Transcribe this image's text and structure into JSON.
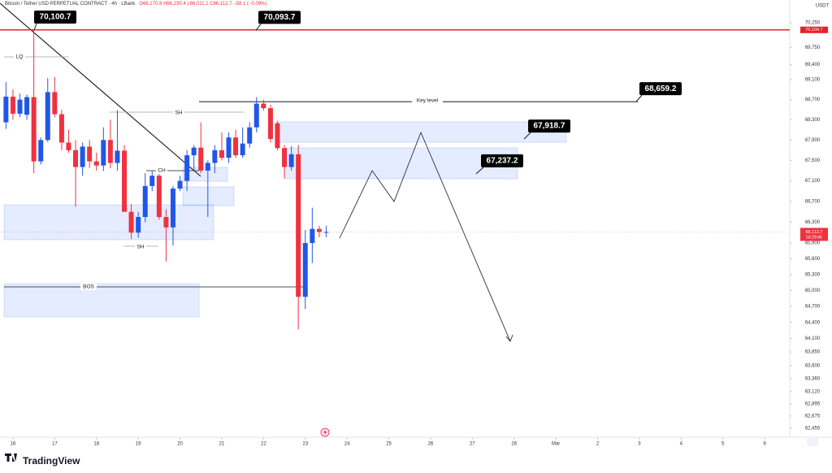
{
  "header": {
    "symbol": "Bitcoin / Tether USD PERPETUAL CONTRACT · 4h · LBank",
    "ohlc": "O66,170.8 H66,230.4 L66,011.1 C66,112.7 −58.1 (−0.09%)"
  },
  "chart_data": {
    "type": "candlestick",
    "log_scale": true,
    "grid": false,
    "up_color": "#2157e8",
    "down_color": "#ef3140",
    "x": [
      15.833,
      16,
      16.167,
      16.333,
      16.5,
      16.667,
      16.833,
      17,
      17.167,
      17.333,
      17.5,
      17.667,
      17.833,
      18,
      18.167,
      18.333,
      18.5,
      18.667,
      18.833,
      19,
      19.167,
      19.333,
      19.5,
      19.667,
      19.833,
      20,
      20.167,
      20.333,
      20.5,
      20.667,
      20.833,
      21,
      21.167,
      21.333,
      21.5,
      21.667,
      21.833,
      22,
      22.167,
      22.333,
      22.5,
      22.667,
      22.833,
      23,
      23.167,
      23.333,
      23.5
    ],
    "open": [
      68250,
      68760,
      68420,
      68400,
      68750,
      67480,
      67900,
      68850,
      68410,
      67850,
      67700,
      67370,
      67770,
      67480,
      67400,
      67900,
      67450,
      67690,
      66500,
      66100,
      66400,
      67000,
      67200,
      66400,
      66200,
      66950,
      67100,
      67600,
      67750,
      67300,
      67450,
      67700,
      67550,
      67950,
      67600,
      67830,
      68150,
      68620,
      68530,
      68230,
      67740,
      67370,
      67620,
      64880,
      65900,
      66170.8,
      66112.7
    ],
    "high": [
      69050,
      68900,
      68820,
      68800,
      70100,
      67950,
      69130,
      69150,
      68500,
      68100,
      67900,
      67850,
      67900,
      67650,
      68150,
      68300,
      68490,
      67800,
      66650,
      66500,
      67250,
      67300,
      67300,
      66550,
      67000,
      67200,
      67700,
      67800,
      68250,
      67500,
      67800,
      68050,
      68050,
      68100,
      68150,
      68250,
      68750,
      68700,
      68600,
      68280,
      67800,
      67780,
      67800,
      66150,
      66580,
      66230.4,
      66230.4
    ],
    "low": [
      68120,
      68300,
      68350,
      68300,
      67250,
      67420,
      67860,
      68350,
      67700,
      67650,
      66600,
      67200,
      67350,
      67300,
      67290,
      67350,
      67300,
      66500,
      65980,
      66000,
      66300,
      66900,
      66350,
      65550,
      65850,
      66900,
      66900,
      67300,
      67250,
      66400,
      67250,
      67500,
      67450,
      67550,
      67550,
      67750,
      68050,
      68480,
      67850,
      67700,
      67150,
      67300,
      64270,
      64650,
      65520,
      66011.1,
      66011.1
    ],
    "close": [
      68760,
      68420,
      68700,
      68750,
      67480,
      67900,
      68850,
      68410,
      67850,
      67700,
      67370,
      67770,
      67480,
      67400,
      67900,
      67450,
      67690,
      66500,
      66100,
      66400,
      67000,
      67200,
      66400,
      66200,
      66950,
      67100,
      67600,
      67750,
      67300,
      67450,
      67700,
      67550,
      67950,
      67600,
      67830,
      68150,
      68620,
      68530,
      67920,
      67740,
      67370,
      67620,
      64880,
      65900,
      66170.8,
      66112.7,
      66112.7
    ],
    "xlim": [
      15.69,
      34.6
    ],
    "xticks": [
      16,
      17,
      18,
      19,
      20,
      21,
      22,
      23,
      24,
      25,
      26,
      27,
      28,
      {
        "value": 29,
        "label": "Mar"
      },
      {
        "value": 30,
        "label": "2"
      },
      {
        "value": 31,
        "label": "3"
      },
      {
        "value": 32,
        "label": "4"
      },
      {
        "value": 33,
        "label": "5"
      },
      {
        "value": 34,
        "label": "6"
      }
    ],
    "ylim": [
      62290,
      70715
    ],
    "yticks": [
      {
        "value": 70250,
        "label": "70,250"
      },
      {
        "value": 69750,
        "label": "69,750"
      },
      {
        "value": 69400,
        "label": "69,400"
      },
      {
        "value": 69100,
        "label": "69,100"
      },
      {
        "value": 68700,
        "label": "68,700"
      },
      {
        "value": 68300,
        "label": "68,300"
      },
      {
        "value": 67900,
        "label": "67,900"
      },
      {
        "value": 67500,
        "label": "67,500"
      },
      {
        "value": 67100,
        "label": "67,100"
      },
      {
        "value": 66700,
        "label": "66,700"
      },
      {
        "value": 66300,
        "label": "66,300"
      },
      {
        "value": 65900,
        "label": "65,900"
      },
      {
        "value": 65600,
        "label": "65,600"
      },
      {
        "value": 65300,
        "label": "65,300"
      },
      {
        "value": 65000,
        "label": "65,000"
      },
      {
        "value": 64700,
        "label": "64,700"
      },
      {
        "value": 64400,
        "label": "64,400"
      },
      {
        "value": 64100,
        "label": "64,100"
      },
      {
        "value": 63850,
        "label": "63,850"
      },
      {
        "value": 63600,
        "label": "63,600"
      },
      {
        "value": 63360,
        "label": "63,360"
      },
      {
        "value": 63120,
        "label": "63,120"
      },
      {
        "value": 62895,
        "label": "62,895"
      },
      {
        "value": 62675,
        "label": "62,675"
      },
      {
        "value": 62455,
        "label": "62,455"
      }
    ],
    "y_unit": "USDT",
    "price_line": {
      "value": 70104.7,
      "label": "70,104.7",
      "color": "#e8202a"
    },
    "last_price": {
      "value": 66112.7,
      "label": "66,112.7",
      "countdown": "03:29:46",
      "color": "#ef3140"
    },
    "callouts": [
      {
        "value": 70100.7,
        "label": "70,100.7"
      },
      {
        "value": 70093.7,
        "label": "70,093.7"
      },
      {
        "value": 68659.2,
        "label": "68,659.2"
      },
      {
        "value": 67918.7,
        "label": "67,918.7"
      },
      {
        "value": 67237.2,
        "label": "67,237.2"
      }
    ],
    "notes": [
      "LQ",
      "SH",
      "CH",
      "SH",
      "BOS",
      "Key level"
    ]
  },
  "footer": {
    "brand": "TradingView"
  }
}
